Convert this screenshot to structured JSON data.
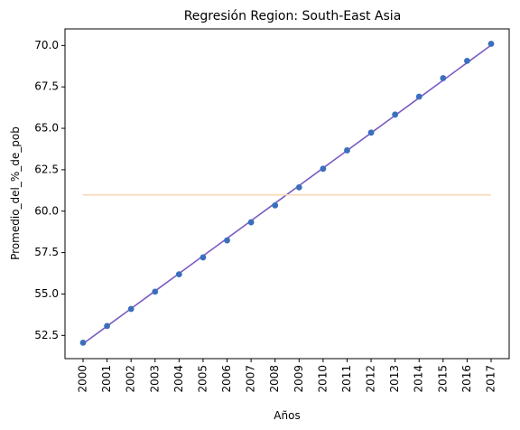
{
  "chart_data": {
    "type": "scatter",
    "title": "Regresión Region: South-East Asia",
    "xlabel": "Años",
    "ylabel": "Promedio_del_%_de_pob",
    "x": [
      2000,
      2001,
      2002,
      2003,
      2004,
      2005,
      2006,
      2007,
      2008,
      2009,
      2010,
      2011,
      2012,
      2013,
      2014,
      2015,
      2016,
      2017
    ],
    "y_ticks": [
      "52.5",
      "55.0",
      "57.5",
      "60.0",
      "62.5",
      "65.0",
      "67.5",
      "70.0"
    ],
    "ylim": [
      51.1,
      71.0
    ],
    "grid": false,
    "series": [
      {
        "kind": "scatter",
        "color": "#3a6fbd",
        "values": [
          52.06,
          53.07,
          54.1,
          55.14,
          56.19,
          57.21,
          58.24,
          59.33,
          60.35,
          61.44,
          62.56,
          63.67,
          64.74,
          65.83,
          66.91,
          68.03,
          69.07,
          70.1
        ]
      },
      {
        "kind": "line",
        "color": "#7b5bc4",
        "values": [
          52.0,
          53.06,
          54.12,
          55.18,
          56.24,
          57.3,
          58.36,
          59.42,
          60.48,
          61.54,
          62.6,
          63.66,
          64.72,
          65.78,
          66.84,
          67.9,
          68.96,
          70.02
        ]
      },
      {
        "kind": "line",
        "color": "#fbd7b3",
        "values": [
          60.98,
          60.98,
          60.98,
          60.98,
          60.98,
          60.98,
          60.98,
          60.98,
          60.98,
          60.98,
          60.98,
          60.98,
          60.98,
          60.98,
          60.98,
          60.98,
          60.98,
          60.98
        ]
      }
    ]
  }
}
